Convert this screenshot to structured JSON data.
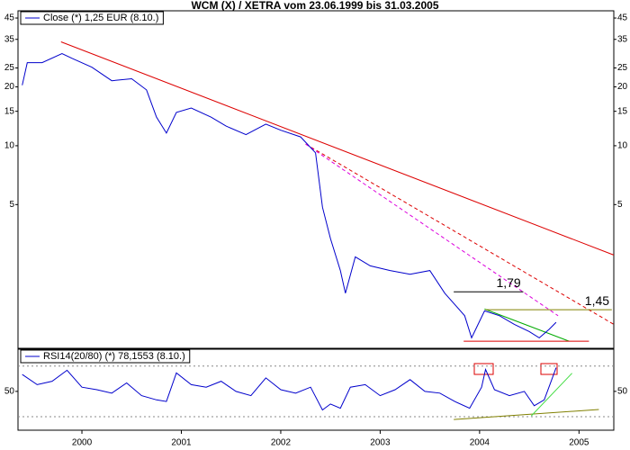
{
  "chart_data": [
    {
      "type": "line",
      "title": "WCM (X) / XETRA vom 23.06.1999 bis 31.03.2005",
      "x": [
        1999.4,
        1999.45,
        1999.6,
        1999.8,
        1999.9,
        2000.1,
        2000.3,
        2000.5,
        2000.65,
        2000.75,
        2000.85,
        2000.95,
        2001.1,
        2001.3,
        2001.45,
        2001.65,
        2001.85,
        2002.0,
        2002.2,
        2002.35,
        2002.42,
        2002.5,
        2002.6,
        2002.65,
        2002.75,
        2002.9,
        2003.1,
        2003.3,
        2003.5,
        2003.65,
        2003.85,
        2003.92,
        2004.05,
        2004.2,
        2004.35,
        2004.5,
        2004.6,
        2004.7,
        2004.77
      ],
      "series": [
        {
          "name": "Close (*) 1,25 EUR (8.10.)",
          "color": "#0000cc",
          "values": [
            20.4,
            26.6,
            26.6,
            29.6,
            28,
            25.2,
            21.5,
            22,
            19.3,
            14,
            11.6,
            14.8,
            15.6,
            14,
            12.6,
            11.4,
            12.9,
            12,
            11.1,
            9.2,
            4.85,
            3.35,
            2.3,
            1.76,
            2.7,
            2.43,
            2.3,
            2.2,
            2.3,
            1.76,
            1.35,
            1.04,
            1.43,
            1.35,
            1.22,
            1.12,
            1.04,
            1.15,
            1.25
          ]
        }
      ],
      "xlim": [
        1999.357,
        2005.35
      ],
      "ylim": [
        0.92,
        49
      ],
      "log_scale": true,
      "yticks": [
        5,
        10,
        15,
        20,
        25,
        35,
        45
      ],
      "trendlines": [
        {
          "x": [
            1999.79,
            2005.35
          ],
          "y": [
            34,
            2.76
          ],
          "color": "#dd0000",
          "dashed": false
        },
        {
          "x": [
            2002.25,
            2005.35
          ],
          "y": [
            10.2,
            1.22
          ],
          "color": "#dd0000",
          "dashed": true
        },
        {
          "x": [
            2002.25,
            2004.79
          ],
          "y": [
            10.2,
            1.35
          ],
          "color": "#dd00dd",
          "dashed": true
        },
        {
          "x": [
            2004.05,
            2004.9
          ],
          "y": [
            1.46,
            1.0
          ],
          "color": "#00aa00",
          "dashed": false
        },
        {
          "x": [
            2003.84,
            2005.1
          ],
          "y": [
            1.0,
            1.0
          ],
          "color": "#dd0000",
          "dashed": false
        }
      ],
      "levels": [
        {
          "value": 1.79,
          "label": "1,79",
          "x": [
            2003.74,
            2004.44
          ],
          "color": "#000000"
        },
        {
          "value": 1.45,
          "label": "1,45",
          "x": [
            2004.06,
            2005.33
          ],
          "color": "#808000"
        }
      ]
    },
    {
      "type": "line",
      "x": [
        1999.4,
        1999.55,
        1999.7,
        1999.85,
        2000.0,
        2000.15,
        2000.3,
        2000.45,
        2000.6,
        2000.75,
        2000.85,
        2000.95,
        2001.1,
        2001.25,
        2001.4,
        2001.55,
        2001.7,
        2001.85,
        2002.0,
        2002.15,
        2002.3,
        2002.42,
        2002.5,
        2002.6,
        2002.7,
        2002.85,
        2003.0,
        2003.15,
        2003.3,
        2003.45,
        2003.6,
        2003.75,
        2003.9,
        2004.02,
        2004.06,
        2004.15,
        2004.3,
        2004.45,
        2004.55,
        2004.65,
        2004.72,
        2004.77
      ],
      "series": [
        {
          "name": "RSI14(20/80) (*) 78,1553 (8.10.)",
          "color": "#0000cc",
          "values": [
            70,
            58,
            62,
            75,
            55,
            52,
            48,
            60,
            45,
            40,
            38,
            72,
            58,
            55,
            62,
            50,
            45,
            66,
            52,
            48,
            55,
            28,
            35,
            30,
            55,
            58,
            45,
            52,
            64,
            50,
            48,
            38,
            30,
            55,
            76,
            52,
            45,
            50,
            33,
            40,
            62,
            78
          ]
        }
      ],
      "xlim": [
        1999.357,
        2005.35
      ],
      "xticks": [
        2000,
        2001,
        2002,
        2003,
        2004,
        2005
      ],
      "ylim": [
        4,
        100
      ],
      "yticks": [
        50
      ],
      "hlines": [
        20,
        80
      ],
      "trendlines": [
        {
          "x": [
            2003.74,
            2005.2
          ],
          "y": [
            16.7,
            28.5
          ],
          "color": "#808000",
          "dashed": false
        },
        {
          "x": [
            2004.52,
            2004.93
          ],
          "y": [
            21,
            71.5
          ],
          "color": "#44dd44",
          "dashed": false
        }
      ]
    }
  ]
}
